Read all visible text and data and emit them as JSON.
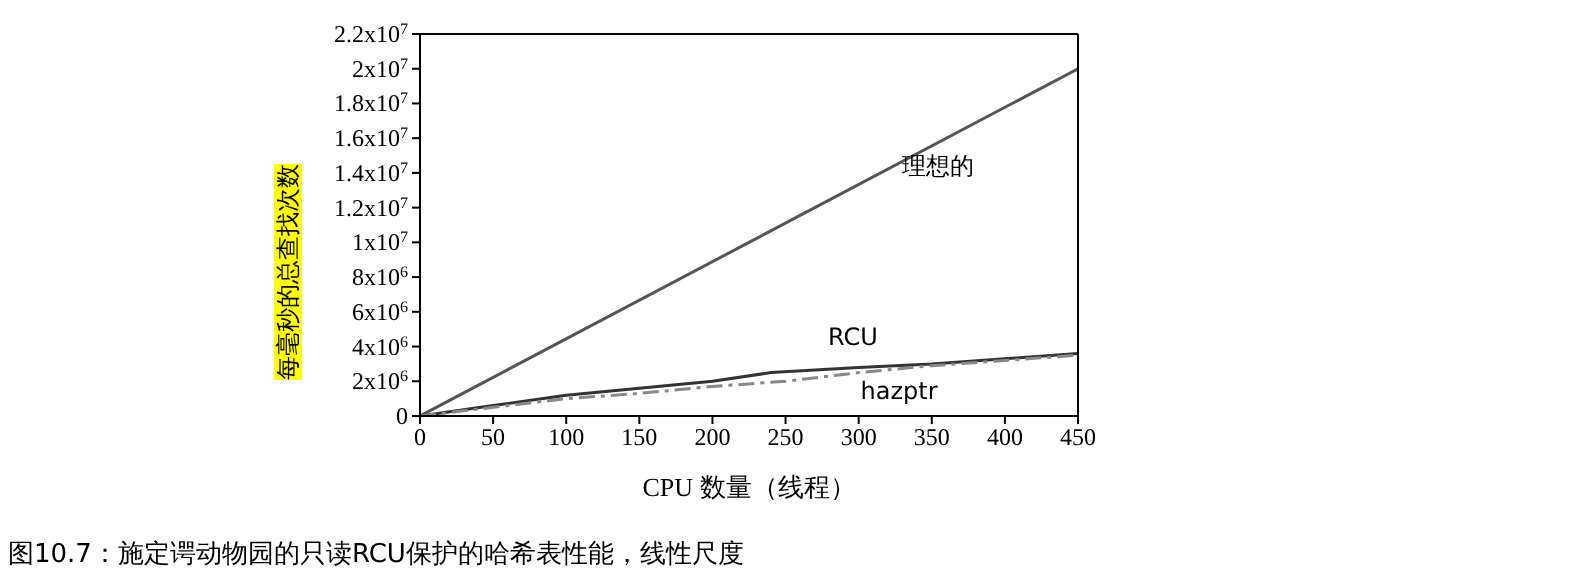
{
  "chart_data": {
    "type": "line",
    "xlabel": "CPU 数量（线程）",
    "ylabel": "每毫秒的总查找次数",
    "xlim": [
      0,
      450
    ],
    "xticks": [
      0,
      50,
      100,
      150,
      200,
      250,
      300,
      350,
      400,
      450
    ],
    "ylim": [
      0,
      22000000
    ],
    "yticks": [
      0,
      {
        "value": 2000000,
        "label": "2x10$^{6}$"
      },
      {
        "value": 4000000,
        "label": "4x10$^{6}$"
      },
      {
        "value": 6000000,
        "label": "6x10$^{6}$"
      },
      {
        "value": 8000000,
        "label": "8x10$^{6}$"
      },
      {
        "value": 10000000,
        "label": "1x10$^{7}$"
      },
      {
        "value": 12000000,
        "label": "1.2x10$^{7}$"
      },
      {
        "value": 14000000,
        "label": "1.4x10$^{7}$"
      },
      {
        "value": 16000000,
        "label": "1.6x10$^{7}$"
      },
      {
        "value": 18000000,
        "label": "1.8x10$^{7}$"
      },
      {
        "value": 20000000,
        "label": "2x10$^{7}$"
      },
      {
        "value": 22000000,
        "label": "2.2x10$^{7}$"
      }
    ],
    "marker": "none",
    "series": [
      {
        "name": "理想的",
        "color": "#555555",
        "x": [
          0,
          450
        ],
        "values": [
          0,
          20000000
        ],
        "line_style": "solid"
      },
      {
        "name": "RCU",
        "color": "#333333",
        "x": [
          0,
          50,
          100,
          150,
          200,
          240,
          300,
          350,
          400,
          450
        ],
        "values": [
          0,
          600000,
          1200000,
          1600000,
          2000000,
          2500000,
          2800000,
          3000000,
          3300000,
          3600000
        ],
        "line_style": "solid"
      },
      {
        "name": "hazptr",
        "color": "#888888",
        "x": [
          0,
          50,
          100,
          150,
          200,
          250,
          300,
          350,
          400,
          450
        ],
        "values": [
          0,
          500000,
          1000000,
          1300000,
          1700000,
          2000000,
          2500000,
          2900000,
          3200000,
          3500000
        ],
        "line_style": "dashed"
      }
    ],
    "annotations": [
      "图10.7：施定谔动物园的只读RCU保护的哈希表性能，线性尺度"
    ]
  }
}
